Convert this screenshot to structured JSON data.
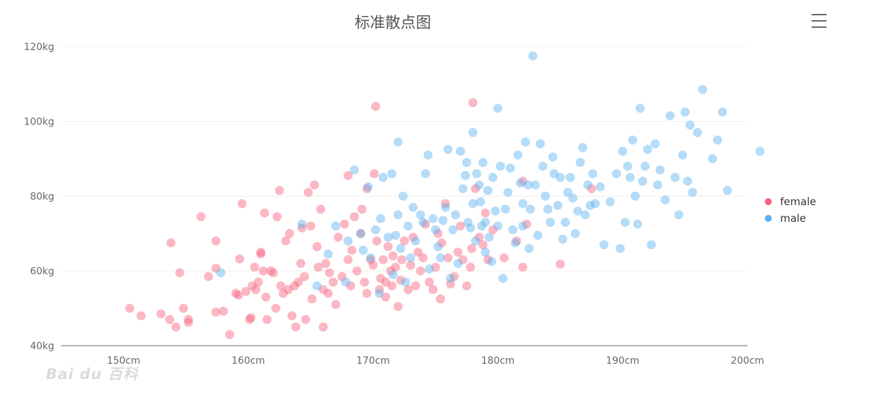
{
  "chart_data": {
    "type": "scatter",
    "title": "标准散点图",
    "x_ticks": [
      "150cm",
      "160cm",
      "170cm",
      "180cm",
      "190cm",
      "200cm"
    ],
    "y_ticks": [
      "40kg",
      "60kg",
      "80kg",
      "100kg",
      "120kg"
    ],
    "xlim": [
      145,
      200
    ],
    "ylim": [
      40,
      120
    ],
    "grid": "horizontal",
    "legend_position": "right",
    "series": [
      {
        "name": "female",
        "color": "#f7627c",
        "points": [
          [
            150.5,
            50
          ],
          [
            151.4,
            48
          ],
          [
            153,
            48.5
          ],
          [
            153.7,
            47
          ],
          [
            154.2,
            45
          ],
          [
            154.8,
            50
          ],
          [
            155.2,
            47
          ],
          [
            155.2,
            46.2
          ],
          [
            153.8,
            67.5
          ],
          [
            154.5,
            59.5
          ],
          [
            156.2,
            74.5
          ],
          [
            156.8,
            58.5
          ],
          [
            157.4,
            49
          ],
          [
            157.4,
            60.7
          ],
          [
            157.4,
            68
          ],
          [
            158,
            49.2
          ],
          [
            158.5,
            43
          ],
          [
            159,
            54
          ],
          [
            159.2,
            53.5
          ],
          [
            159.3,
            63.2
          ],
          [
            159.5,
            78
          ],
          [
            159.8,
            54.5
          ],
          [
            160.1,
            47
          ],
          [
            160.2,
            47.5
          ],
          [
            160.3,
            56
          ],
          [
            160.5,
            61
          ],
          [
            160.6,
            55
          ],
          [
            160.8,
            57
          ],
          [
            161,
            65
          ],
          [
            161,
            64.5
          ],
          [
            161.2,
            60
          ],
          [
            161.3,
            75.5
          ],
          [
            161.4,
            53
          ],
          [
            161.5,
            47
          ],
          [
            161.8,
            60
          ],
          [
            162,
            59.5
          ],
          [
            162.2,
            50
          ],
          [
            162.3,
            74.5
          ],
          [
            162.5,
            81.5
          ],
          [
            162.6,
            56
          ],
          [
            162.8,
            54
          ],
          [
            163,
            68
          ],
          [
            163.2,
            55
          ],
          [
            163.3,
            70
          ],
          [
            163.5,
            48
          ],
          [
            163.7,
            56
          ],
          [
            163.8,
            45
          ],
          [
            164,
            57
          ],
          [
            164.2,
            62
          ],
          [
            164.3,
            71.5
          ],
          [
            164.5,
            58.5
          ],
          [
            164.6,
            47
          ],
          [
            164.8,
            81
          ],
          [
            165,
            72
          ],
          [
            165.1,
            52.5
          ],
          [
            165.3,
            83
          ],
          [
            165.5,
            66.5
          ],
          [
            165.6,
            61
          ],
          [
            165.8,
            76.5
          ],
          [
            166,
            55
          ],
          [
            166,
            45
          ],
          [
            166.2,
            62
          ],
          [
            166.4,
            54
          ],
          [
            166.5,
            59.5
          ],
          [
            166.8,
            57
          ],
          [
            167,
            51
          ],
          [
            167.2,
            69
          ],
          [
            167.5,
            58.5
          ],
          [
            167.7,
            72.5
          ],
          [
            168,
            85.5
          ],
          [
            168,
            63
          ],
          [
            168.2,
            56
          ],
          [
            168.3,
            65.5
          ],
          [
            168.5,
            74.5
          ],
          [
            168.7,
            60
          ],
          [
            169,
            70
          ],
          [
            169.1,
            76.5
          ],
          [
            169.3,
            57
          ],
          [
            169.5,
            54
          ],
          [
            169.5,
            82
          ],
          [
            169.8,
            63
          ],
          [
            170,
            61.5
          ],
          [
            170.1,
            86
          ],
          [
            170.2,
            104
          ],
          [
            170.3,
            68
          ],
          [
            170.5,
            55
          ],
          [
            170.6,
            58
          ],
          [
            170.8,
            63
          ],
          [
            171,
            57
          ],
          [
            171,
            53
          ],
          [
            171.2,
            66.5
          ],
          [
            171.4,
            60
          ],
          [
            171.5,
            56
          ],
          [
            171.6,
            64
          ],
          [
            171.8,
            61
          ],
          [
            172,
            50.5
          ],
          [
            172.2,
            57.5
          ],
          [
            172.3,
            63
          ],
          [
            172.5,
            68
          ],
          [
            172.8,
            55
          ],
          [
            173,
            61.5
          ],
          [
            173.2,
            69
          ],
          [
            173.4,
            56
          ],
          [
            173.6,
            65
          ],
          [
            173.8,
            60
          ],
          [
            174,
            63.5
          ],
          [
            174.2,
            72.5
          ],
          [
            174.5,
            57
          ],
          [
            174.8,
            55
          ],
          [
            175,
            61
          ],
          [
            175.2,
            70
          ],
          [
            175.4,
            52.5
          ],
          [
            175.5,
            67.5
          ],
          [
            175.8,
            78
          ],
          [
            176,
            63.5
          ],
          [
            176.2,
            56.5
          ],
          [
            176.5,
            58.5
          ],
          [
            176.8,
            65
          ],
          [
            177,
            72
          ],
          [
            177.2,
            63
          ],
          [
            177.5,
            56
          ],
          [
            177.8,
            61
          ],
          [
            177.9,
            66
          ],
          [
            178,
            105
          ],
          [
            178.2,
            82
          ],
          [
            178.5,
            69
          ],
          [
            178.8,
            67
          ],
          [
            179,
            75.5
          ],
          [
            179.2,
            63
          ],
          [
            179.6,
            71
          ],
          [
            180.5,
            63.5
          ],
          [
            181.5,
            68
          ],
          [
            182,
            84
          ],
          [
            182,
            61
          ],
          [
            182.3,
            72.5
          ],
          [
            185,
            61.8
          ],
          [
            187.5,
            82
          ]
        ]
      },
      {
        "name": "male",
        "color": "#5ab1ef",
        "points": [
          [
            157.8,
            59.5
          ],
          [
            164.3,
            72.5
          ],
          [
            165.5,
            56
          ],
          [
            166.4,
            64.5
          ],
          [
            167,
            72
          ],
          [
            167.8,
            57
          ],
          [
            168,
            68
          ],
          [
            168.5,
            87
          ],
          [
            169,
            70
          ],
          [
            169.2,
            65.5
          ],
          [
            169.6,
            82.5
          ],
          [
            169.8,
            63.5
          ],
          [
            170.2,
            71
          ],
          [
            170.5,
            54
          ],
          [
            170.6,
            74
          ],
          [
            170.8,
            85
          ],
          [
            171.2,
            69
          ],
          [
            171.5,
            86
          ],
          [
            171.6,
            59
          ],
          [
            171.8,
            69.5
          ],
          [
            172,
            94.5
          ],
          [
            172,
            75
          ],
          [
            172.2,
            66
          ],
          [
            172.4,
            80
          ],
          [
            172.6,
            57
          ],
          [
            172.8,
            72
          ],
          [
            173,
            63.5
          ],
          [
            173.2,
            77
          ],
          [
            173.4,
            68
          ],
          [
            173.8,
            75
          ],
          [
            174,
            73
          ],
          [
            174.2,
            86
          ],
          [
            174.4,
            91
          ],
          [
            174.5,
            60.5
          ],
          [
            174.8,
            74
          ],
          [
            175,
            71
          ],
          [
            175.2,
            66.5
          ],
          [
            175.4,
            63.5
          ],
          [
            175.6,
            73.5
          ],
          [
            175.8,
            77
          ],
          [
            176,
            92.5
          ],
          [
            176.2,
            58
          ],
          [
            176.4,
            71
          ],
          [
            176.6,
            75
          ],
          [
            176.8,
            62
          ],
          [
            177,
            92
          ],
          [
            177.2,
            82
          ],
          [
            177.4,
            85.5
          ],
          [
            177.5,
            89
          ],
          [
            177.6,
            73
          ],
          [
            177.8,
            71.5
          ],
          [
            178,
            78
          ],
          [
            178,
            97
          ],
          [
            178.2,
            68
          ],
          [
            178.3,
            86
          ],
          [
            178.5,
            83
          ],
          [
            178.6,
            78.5
          ],
          [
            178.7,
            72
          ],
          [
            178.8,
            89
          ],
          [
            179,
            73
          ],
          [
            179,
            65
          ],
          [
            179.2,
            81.5
          ],
          [
            179.3,
            69
          ],
          [
            179.5,
            62.5
          ],
          [
            179.6,
            85
          ],
          [
            179.8,
            76
          ],
          [
            180,
            72
          ],
          [
            180,
            103.5
          ],
          [
            180.2,
            88
          ],
          [
            180.4,
            58
          ],
          [
            180.6,
            76.5
          ],
          [
            180.8,
            81
          ],
          [
            181,
            87.5
          ],
          [
            181.2,
            71
          ],
          [
            181.4,
            67.5
          ],
          [
            181.6,
            91
          ],
          [
            181.8,
            83.5
          ],
          [
            182,
            72
          ],
          [
            182,
            78
          ],
          [
            182.2,
            94.5
          ],
          [
            182.4,
            83
          ],
          [
            182.5,
            66
          ],
          [
            182.6,
            76.5
          ],
          [
            182.8,
            117.5
          ],
          [
            183,
            83
          ],
          [
            183.2,
            69.5
          ],
          [
            183.4,
            94
          ],
          [
            183.6,
            88
          ],
          [
            183.8,
            80
          ],
          [
            184,
            76.5
          ],
          [
            184.2,
            73
          ],
          [
            184.4,
            90.5
          ],
          [
            184.5,
            86
          ],
          [
            184.8,
            77.5
          ],
          [
            185,
            85
          ],
          [
            185.2,
            68.5
          ],
          [
            185.4,
            73
          ],
          [
            185.6,
            81
          ],
          [
            185.8,
            85
          ],
          [
            186,
            79.5
          ],
          [
            186.2,
            70
          ],
          [
            186.4,
            76
          ],
          [
            186.6,
            89
          ],
          [
            186.8,
            93
          ],
          [
            187,
            75
          ],
          [
            187.2,
            83
          ],
          [
            187.4,
            77.5
          ],
          [
            187.6,
            86
          ],
          [
            187.8,
            78
          ],
          [
            188.2,
            82.5
          ],
          [
            188.5,
            67
          ],
          [
            189,
            78.5
          ],
          [
            189.5,
            86
          ],
          [
            189.8,
            66
          ],
          [
            190,
            92
          ],
          [
            190.2,
            73
          ],
          [
            190.4,
            88
          ],
          [
            190.6,
            85
          ],
          [
            190.8,
            95
          ],
          [
            191,
            80
          ],
          [
            191.2,
            72.5
          ],
          [
            191.4,
            103.5
          ],
          [
            191.6,
            84
          ],
          [
            191.8,
            88
          ],
          [
            192,
            92.5
          ],
          [
            192.3,
            67
          ],
          [
            192.6,
            94
          ],
          [
            192.8,
            83
          ],
          [
            193,
            87
          ],
          [
            193.4,
            79
          ],
          [
            193.8,
            101.5
          ],
          [
            194.2,
            85
          ],
          [
            194.5,
            75
          ],
          [
            194.8,
            91
          ],
          [
            195,
            102.5
          ],
          [
            195.2,
            84
          ],
          [
            195.4,
            99
          ],
          [
            195.6,
            81
          ],
          [
            196,
            97
          ],
          [
            196.4,
            108.5
          ],
          [
            197.2,
            90
          ],
          [
            197.6,
            95
          ],
          [
            198,
            102.5
          ],
          [
            198.4,
            81.5
          ],
          [
            201,
            92
          ]
        ]
      }
    ]
  },
  "legend": {
    "items": [
      {
        "label": "female"
      },
      {
        "label": "male"
      }
    ]
  },
  "watermark": "Bai du 百科",
  "icons": {
    "menu": "hamburger-menu-icon"
  }
}
